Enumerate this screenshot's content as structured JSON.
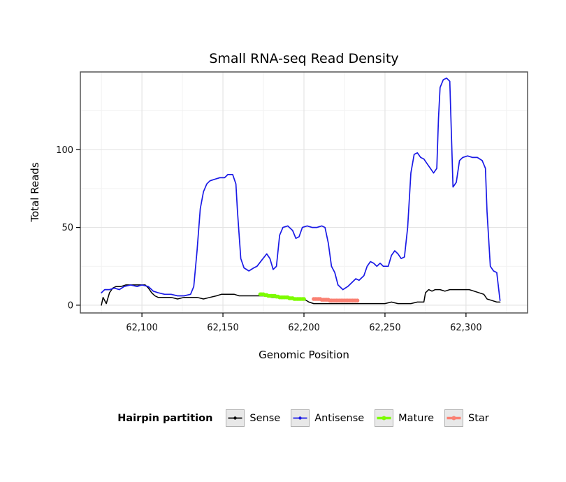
{
  "legend": {
    "title": "Hairpin partition",
    "items": [
      {
        "label": "Sense",
        "color": "#000000",
        "thick": false
      },
      {
        "label": "Antisense",
        "color": "#1A1AE6",
        "thick": false
      },
      {
        "label": "Mature",
        "color": "#7CFC00",
        "thick": true
      },
      {
        "label": "Star",
        "color": "#FA8072",
        "thick": true
      }
    ]
  },
  "chart_data": {
    "type": "line",
    "title": "Small RNA-seq Read Density",
    "xlabel": "Genomic Position",
    "ylabel": "Total Reads",
    "xlim": [
      62062,
      62338
    ],
    "ylim": [
      -5,
      150
    ],
    "xticks": [
      62100,
      62150,
      62200,
      62250,
      62300
    ],
    "yticks": [
      0,
      50,
      100
    ],
    "xminor": [
      62075,
      62125,
      62175,
      62225,
      62275,
      62325
    ],
    "yminor": [
      25,
      75,
      125
    ],
    "grid": true,
    "legend_position": "bottom",
    "panel_border_color": "#555555",
    "grid_major_color": "#E4E4E4",
    "grid_minor_color": "#F2F2F2",
    "series": [
      {
        "name": "Sense",
        "color": "#000000",
        "width": 1.5,
        "markers": false,
        "points": [
          [
            62075,
            0
          ],
          [
            62076,
            5
          ],
          [
            62078,
            1
          ],
          [
            62080,
            8
          ],
          [
            62082,
            11
          ],
          [
            62084,
            12
          ],
          [
            62087,
            12
          ],
          [
            62090,
            13
          ],
          [
            62094,
            13
          ],
          [
            62098,
            13
          ],
          [
            62102,
            13
          ],
          [
            62104,
            11
          ],
          [
            62106,
            8
          ],
          [
            62108,
            6
          ],
          [
            62110,
            5
          ],
          [
            62114,
            5
          ],
          [
            62118,
            5
          ],
          [
            62122,
            4
          ],
          [
            62126,
            5
          ],
          [
            62130,
            5
          ],
          [
            62134,
            5
          ],
          [
            62138,
            4
          ],
          [
            62142,
            5
          ],
          [
            62146,
            6
          ],
          [
            62149,
            7
          ],
          [
            62153,
            7
          ],
          [
            62157,
            7
          ],
          [
            62160,
            6
          ],
          [
            62164,
            6
          ],
          [
            62168,
            6
          ],
          [
            62172,
            6
          ],
          [
            62176,
            6
          ],
          [
            62180,
            5
          ],
          [
            62184,
            5
          ],
          [
            62188,
            5
          ],
          [
            62192,
            5
          ],
          [
            62196,
            4
          ],
          [
            62200,
            4
          ],
          [
            62203,
            2
          ],
          [
            62206,
            1
          ],
          [
            62210,
            1
          ],
          [
            62215,
            1
          ],
          [
            62220,
            1
          ],
          [
            62225,
            1
          ],
          [
            62230,
            1
          ],
          [
            62235,
            1
          ],
          [
            62240,
            1
          ],
          [
            62245,
            1
          ],
          [
            62250,
            1
          ],
          [
            62254,
            2
          ],
          [
            62258,
            1
          ],
          [
            62262,
            1
          ],
          [
            62266,
            1
          ],
          [
            62270,
            2
          ],
          [
            62274,
            2
          ],
          [
            62275,
            8
          ],
          [
            62277,
            10
          ],
          [
            62279,
            9
          ],
          [
            62281,
            10
          ],
          [
            62284,
            10
          ],
          [
            62287,
            9
          ],
          [
            62290,
            10
          ],
          [
            62293,
            10
          ],
          [
            62296,
            10
          ],
          [
            62299,
            10
          ],
          [
            62302,
            10
          ],
          [
            62305,
            9
          ],
          [
            62308,
            8
          ],
          [
            62311,
            7
          ],
          [
            62313,
            4
          ],
          [
            62316,
            3
          ],
          [
            62319,
            2
          ],
          [
            62321,
            2
          ]
        ]
      },
      {
        "name": "Antisense",
        "color": "#1A1AE6",
        "width": 1.7,
        "markers": false,
        "points": [
          [
            62075,
            8
          ],
          [
            62077,
            10
          ],
          [
            62080,
            10
          ],
          [
            62083,
            11
          ],
          [
            62086,
            10
          ],
          [
            62089,
            12
          ],
          [
            62093,
            13
          ],
          [
            62097,
            12
          ],
          [
            62100,
            13
          ],
          [
            62104,
            12
          ],
          [
            62107,
            9
          ],
          [
            62110,
            8
          ],
          [
            62114,
            7
          ],
          [
            62118,
            7
          ],
          [
            62122,
            6
          ],
          [
            62126,
            6
          ],
          [
            62130,
            7
          ],
          [
            62132,
            12
          ],
          [
            62134,
            35
          ],
          [
            62136,
            62
          ],
          [
            62138,
            73
          ],
          [
            62140,
            78
          ],
          [
            62142,
            80
          ],
          [
            62145,
            81
          ],
          [
            62148,
            82
          ],
          [
            62151,
            82
          ],
          [
            62153,
            84
          ],
          [
            62156,
            84
          ],
          [
            62158,
            78
          ],
          [
            62159,
            60
          ],
          [
            62161,
            30
          ],
          [
            62163,
            24
          ],
          [
            62166,
            22
          ],
          [
            62169,
            24
          ],
          [
            62171,
            25
          ],
          [
            62174,
            29
          ],
          [
            62177,
            33
          ],
          [
            62179,
            30
          ],
          [
            62181,
            23
          ],
          [
            62183,
            25
          ],
          [
            62185,
            45
          ],
          [
            62187,
            50
          ],
          [
            62190,
            51
          ],
          [
            62193,
            48
          ],
          [
            62195,
            43
          ],
          [
            62197,
            44
          ],
          [
            62199,
            50
          ],
          [
            62202,
            51
          ],
          [
            62205,
            50
          ],
          [
            62208,
            50
          ],
          [
            62211,
            51
          ],
          [
            62213,
            50
          ],
          [
            62215,
            40
          ],
          [
            62217,
            25
          ],
          [
            62219,
            21
          ],
          [
            62221,
            13
          ],
          [
            62224,
            10
          ],
          [
            62227,
            12
          ],
          [
            62230,
            15
          ],
          [
            62232,
            17
          ],
          [
            62234,
            16
          ],
          [
            62237,
            19
          ],
          [
            62239,
            25
          ],
          [
            62241,
            28
          ],
          [
            62243,
            27
          ],
          [
            62245,
            25
          ],
          [
            62247,
            27
          ],
          [
            62249,
            25
          ],
          [
            62252,
            25
          ],
          [
            62254,
            32
          ],
          [
            62256,
            35
          ],
          [
            62258,
            33
          ],
          [
            62260,
            30
          ],
          [
            62262,
            31
          ],
          [
            62264,
            50
          ],
          [
            62266,
            85
          ],
          [
            62268,
            97
          ],
          [
            62270,
            98
          ],
          [
            62272,
            95
          ],
          [
            62274,
            94
          ],
          [
            62276,
            91
          ],
          [
            62278,
            88
          ],
          [
            62280,
            85
          ],
          [
            62282,
            88
          ],
          [
            62283,
            120
          ],
          [
            62284,
            140
          ],
          [
            62286,
            145
          ],
          [
            62288,
            146
          ],
          [
            62290,
            144
          ],
          [
            62291,
            110
          ],
          [
            62292,
            76
          ],
          [
            62294,
            79
          ],
          [
            62296,
            93
          ],
          [
            62298,
            95
          ],
          [
            62301,
            96
          ],
          [
            62304,
            95
          ],
          [
            62307,
            95
          ],
          [
            62310,
            93
          ],
          [
            62312,
            88
          ],
          [
            62313,
            60
          ],
          [
            62315,
            25
          ],
          [
            62317,
            22
          ],
          [
            62319,
            21
          ],
          [
            62321,
            3
          ]
        ]
      },
      {
        "name": "Mature",
        "color": "#7CFC00",
        "width": 3.5,
        "markers": true,
        "points": [
          [
            62173,
            7
          ],
          [
            62174,
            7
          ],
          [
            62175,
            7
          ],
          [
            62176,
            6.5
          ],
          [
            62177,
            6.5
          ],
          [
            62178,
            6
          ],
          [
            62179,
            6
          ],
          [
            62180,
            6
          ],
          [
            62181,
            6
          ],
          [
            62182,
            6
          ],
          [
            62183,
            5.5
          ],
          [
            62184,
            5.5
          ],
          [
            62185,
            5
          ],
          [
            62186,
            5
          ],
          [
            62187,
            5
          ],
          [
            62188,
            5
          ],
          [
            62189,
            5
          ],
          [
            62190,
            5
          ],
          [
            62191,
            4.5
          ],
          [
            62192,
            4.5
          ],
          [
            62193,
            4.5
          ],
          [
            62194,
            4
          ],
          [
            62195,
            4
          ],
          [
            62196,
            4
          ],
          [
            62197,
            4
          ],
          [
            62198,
            4
          ],
          [
            62199,
            4
          ],
          [
            62200,
            4
          ]
        ]
      },
      {
        "name": "Star",
        "color": "#FA8072",
        "width": 3.5,
        "markers": true,
        "points": [
          [
            62206,
            4
          ],
          [
            62207,
            4
          ],
          [
            62208,
            4
          ],
          [
            62209,
            4
          ],
          [
            62210,
            4
          ],
          [
            62211,
            3.5
          ],
          [
            62212,
            3.5
          ],
          [
            62213,
            3.5
          ],
          [
            62214,
            3.5
          ],
          [
            62215,
            3.5
          ],
          [
            62216,
            3
          ],
          [
            62217,
            3
          ],
          [
            62218,
            3
          ],
          [
            62219,
            3
          ],
          [
            62220,
            3
          ],
          [
            62221,
            3
          ],
          [
            62222,
            3
          ],
          [
            62223,
            3
          ],
          [
            62224,
            3
          ],
          [
            62225,
            3
          ],
          [
            62226,
            3
          ],
          [
            62227,
            3
          ],
          [
            62228,
            3
          ],
          [
            62229,
            3
          ],
          [
            62230,
            3
          ],
          [
            62231,
            3
          ],
          [
            62232,
            3
          ],
          [
            62233,
            3
          ]
        ]
      }
    ]
  }
}
